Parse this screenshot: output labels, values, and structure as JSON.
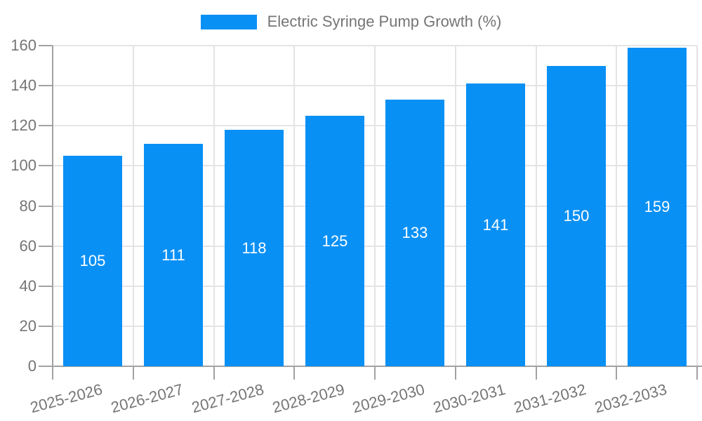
{
  "colors": {
    "bar": "#0990f5",
    "grid": "#e4e4e4",
    "axis": "#a2a2a2",
    "text": "#757575",
    "bar_label": "#ffffff",
    "background": "#ffffff"
  },
  "legend": {
    "label": "Electric Syringe Pump Growth (%)"
  },
  "chart_data": {
    "type": "bar",
    "title": "Electric Syringe Pump Growth (%)",
    "categories": [
      "2025-2026",
      "2026-2027",
      "2027-2028",
      "2028-2029",
      "2029-2030",
      "2030-2031",
      "2031-2032",
      "2032-2033"
    ],
    "values": [
      105,
      111,
      118,
      125,
      133,
      141,
      150,
      159
    ],
    "xlabel": "",
    "ylabel": "",
    "ylim": [
      0,
      160
    ],
    "ytick_step": 20,
    "yticks": [
      0,
      20,
      40,
      60,
      80,
      100,
      120,
      140,
      160
    ],
    "grid": true,
    "legend_position": "top-center",
    "value_labels": "inside-center",
    "x_label_rotation_deg": -15
  }
}
